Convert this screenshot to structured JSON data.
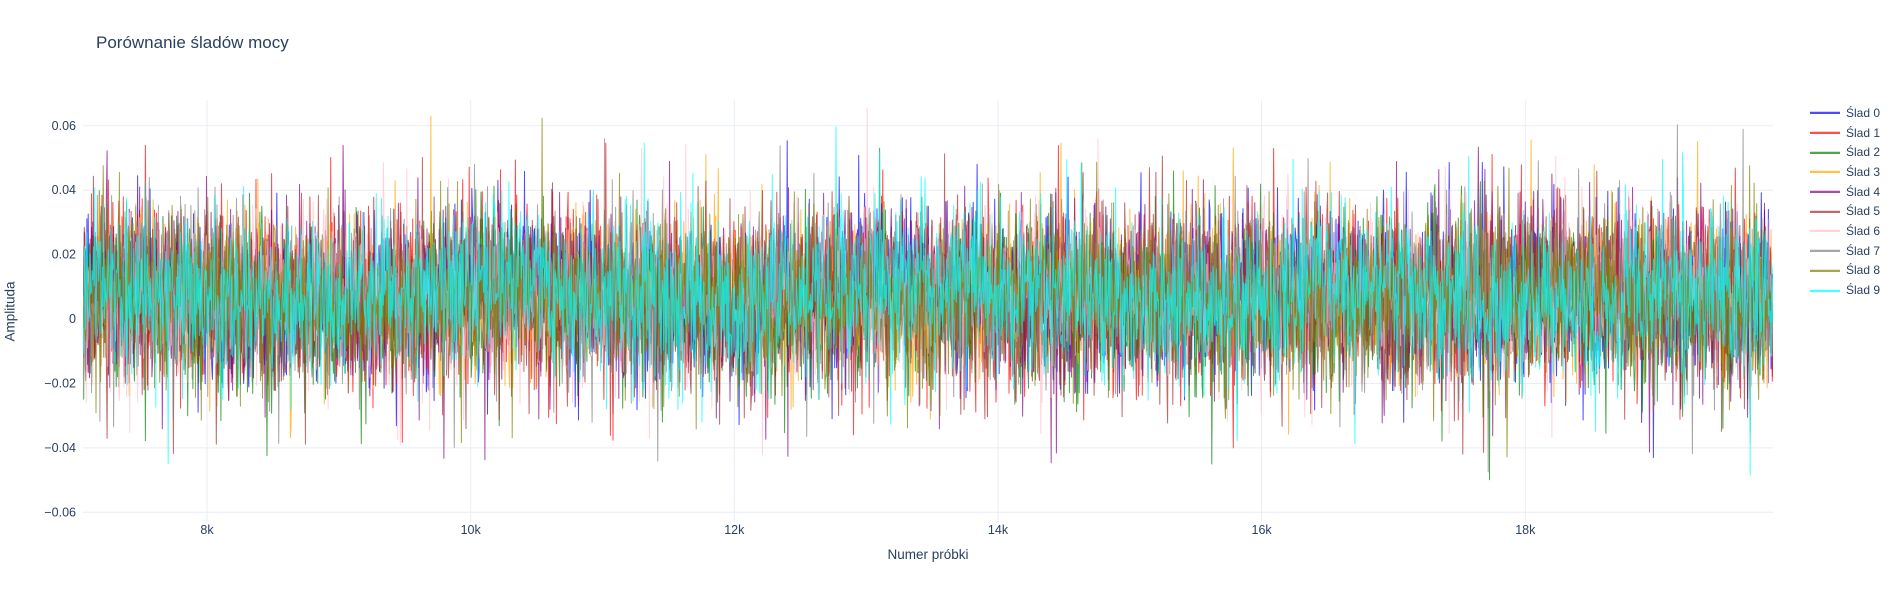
{
  "colors": {
    "text": "#2a3f5f",
    "grid": "#e8edf6",
    "background": "#ffffff"
  },
  "chart_data": {
    "type": "line",
    "title": "Porównanie śladów mocy",
    "xlabel": "Numer próbki",
    "ylabel": "Amplituda",
    "grid": true,
    "legend_position": "right",
    "x_axis": {
      "range": [
        7059,
        19879
      ],
      "ticks": [
        {
          "v": 8000,
          "label": "8k"
        },
        {
          "v": 10000,
          "label": "10k"
        },
        {
          "v": 12000,
          "label": "12k"
        },
        {
          "v": 14000,
          "label": "14k"
        },
        {
          "v": 16000,
          "label": "16k"
        },
        {
          "v": 18000,
          "label": "18k"
        }
      ]
    },
    "y_axis": {
      "range": [
        -0.063,
        0.068
      ],
      "ticks": [
        {
          "v": 0.06,
          "label": "0.06"
        },
        {
          "v": 0.04,
          "label": "0.04"
        },
        {
          "v": 0.02,
          "label": "0.02"
        },
        {
          "v": 0,
          "label": "0"
        },
        {
          "v": -0.02,
          "label": "−0.02"
        },
        {
          "v": -0.04,
          "label": "−0.04"
        },
        {
          "v": -0.06,
          "label": "−0.06"
        }
      ]
    },
    "series": [
      {
        "name": "Ślad 0",
        "color": "#0000ff",
        "seed": 101
      },
      {
        "name": "Ślad 1",
        "color": "#ff0000",
        "seed": 102
      },
      {
        "name": "Ślad 2",
        "color": "#008000",
        "seed": 103
      },
      {
        "name": "Ślad 3",
        "color": "#ffa500",
        "seed": 104
      },
      {
        "name": "Ślad 4",
        "color": "#800080",
        "seed": 105
      },
      {
        "name": "Ślad 5",
        "color": "#a52a2a",
        "seed": 106
      },
      {
        "name": "Ślad 6",
        "color": "#ffc0cb",
        "seed": 107
      },
      {
        "name": "Ślad 7",
        "color": "#808080",
        "seed": 108
      },
      {
        "name": "Ślad 8",
        "color": "#808000",
        "seed": 109
      },
      {
        "name": "Ślad 9",
        "color": "#00ffff",
        "seed": 110
      }
    ],
    "line_opacity": 0.7,
    "noise_model": {
      "points_per_trace": 2600,
      "mean": 0.006,
      "std": 0.0105,
      "wobble_amplitude": 0.0035,
      "wobble_period_samples": 2600,
      "medium_spike_probability": 0.06,
      "medium_spike_min": 0.015,
      "medium_spike_sigma": 0.008,
      "spike_probability": 0.018,
      "spike_min": 0.026,
      "spike_sigma": 0.012,
      "spike_up_bias": 0.54,
      "clip": [
        -0.0565,
        0.0655
      ]
    }
  }
}
